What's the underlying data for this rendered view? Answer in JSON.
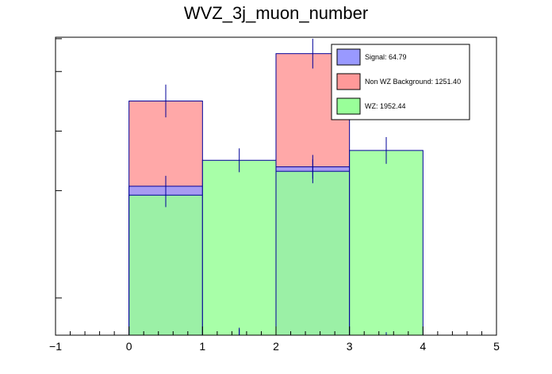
{
  "chart_data": {
    "type": "bar",
    "title": "WVZ_3j_muon_number",
    "xlabel": "",
    "ylabel": "",
    "xlim": [
      -1,
      5
    ],
    "ylim": [
      0,
      1
    ],
    "x_ticks": [
      "−1",
      "0",
      "1",
      "2",
      "3",
      "4",
      "5"
    ],
    "x_tick_values": [
      -1,
      0,
      1,
      2,
      3,
      4,
      5
    ],
    "bins": [
      [
        0,
        1
      ],
      [
        1,
        2
      ],
      [
        2,
        3
      ],
      [
        3,
        4
      ]
    ],
    "grid": false,
    "legend_position": "top-right",
    "series": [
      {
        "name": "Non WZ Background",
        "legend_label": "Non WZ Background: 1251.40",
        "color": "#ff9999",
        "bin_errors": [
          0.055,
          0.025,
          0.05,
          0.01
        ],
        "values": [
          0.786,
          0.0,
          0.945,
          0.0
        ]
      },
      {
        "name": "Signal",
        "legend_label": "Signal: 64.79",
        "color": "#9999ff",
        "bin_errors": [
          0.035,
          0.02,
          0.04,
          0.005
        ],
        "values": [
          0.5,
          0.0,
          0.565,
          0.0
        ]
      },
      {
        "name": "WZ",
        "legend_label": "WZ: 1952.44",
        "color": "#99ff99",
        "bin_errors": [
          0.04,
          0.04,
          0.04,
          0.045
        ],
        "values": [
          0.47,
          0.587,
          0.55,
          0.62
        ]
      }
    ]
  }
}
